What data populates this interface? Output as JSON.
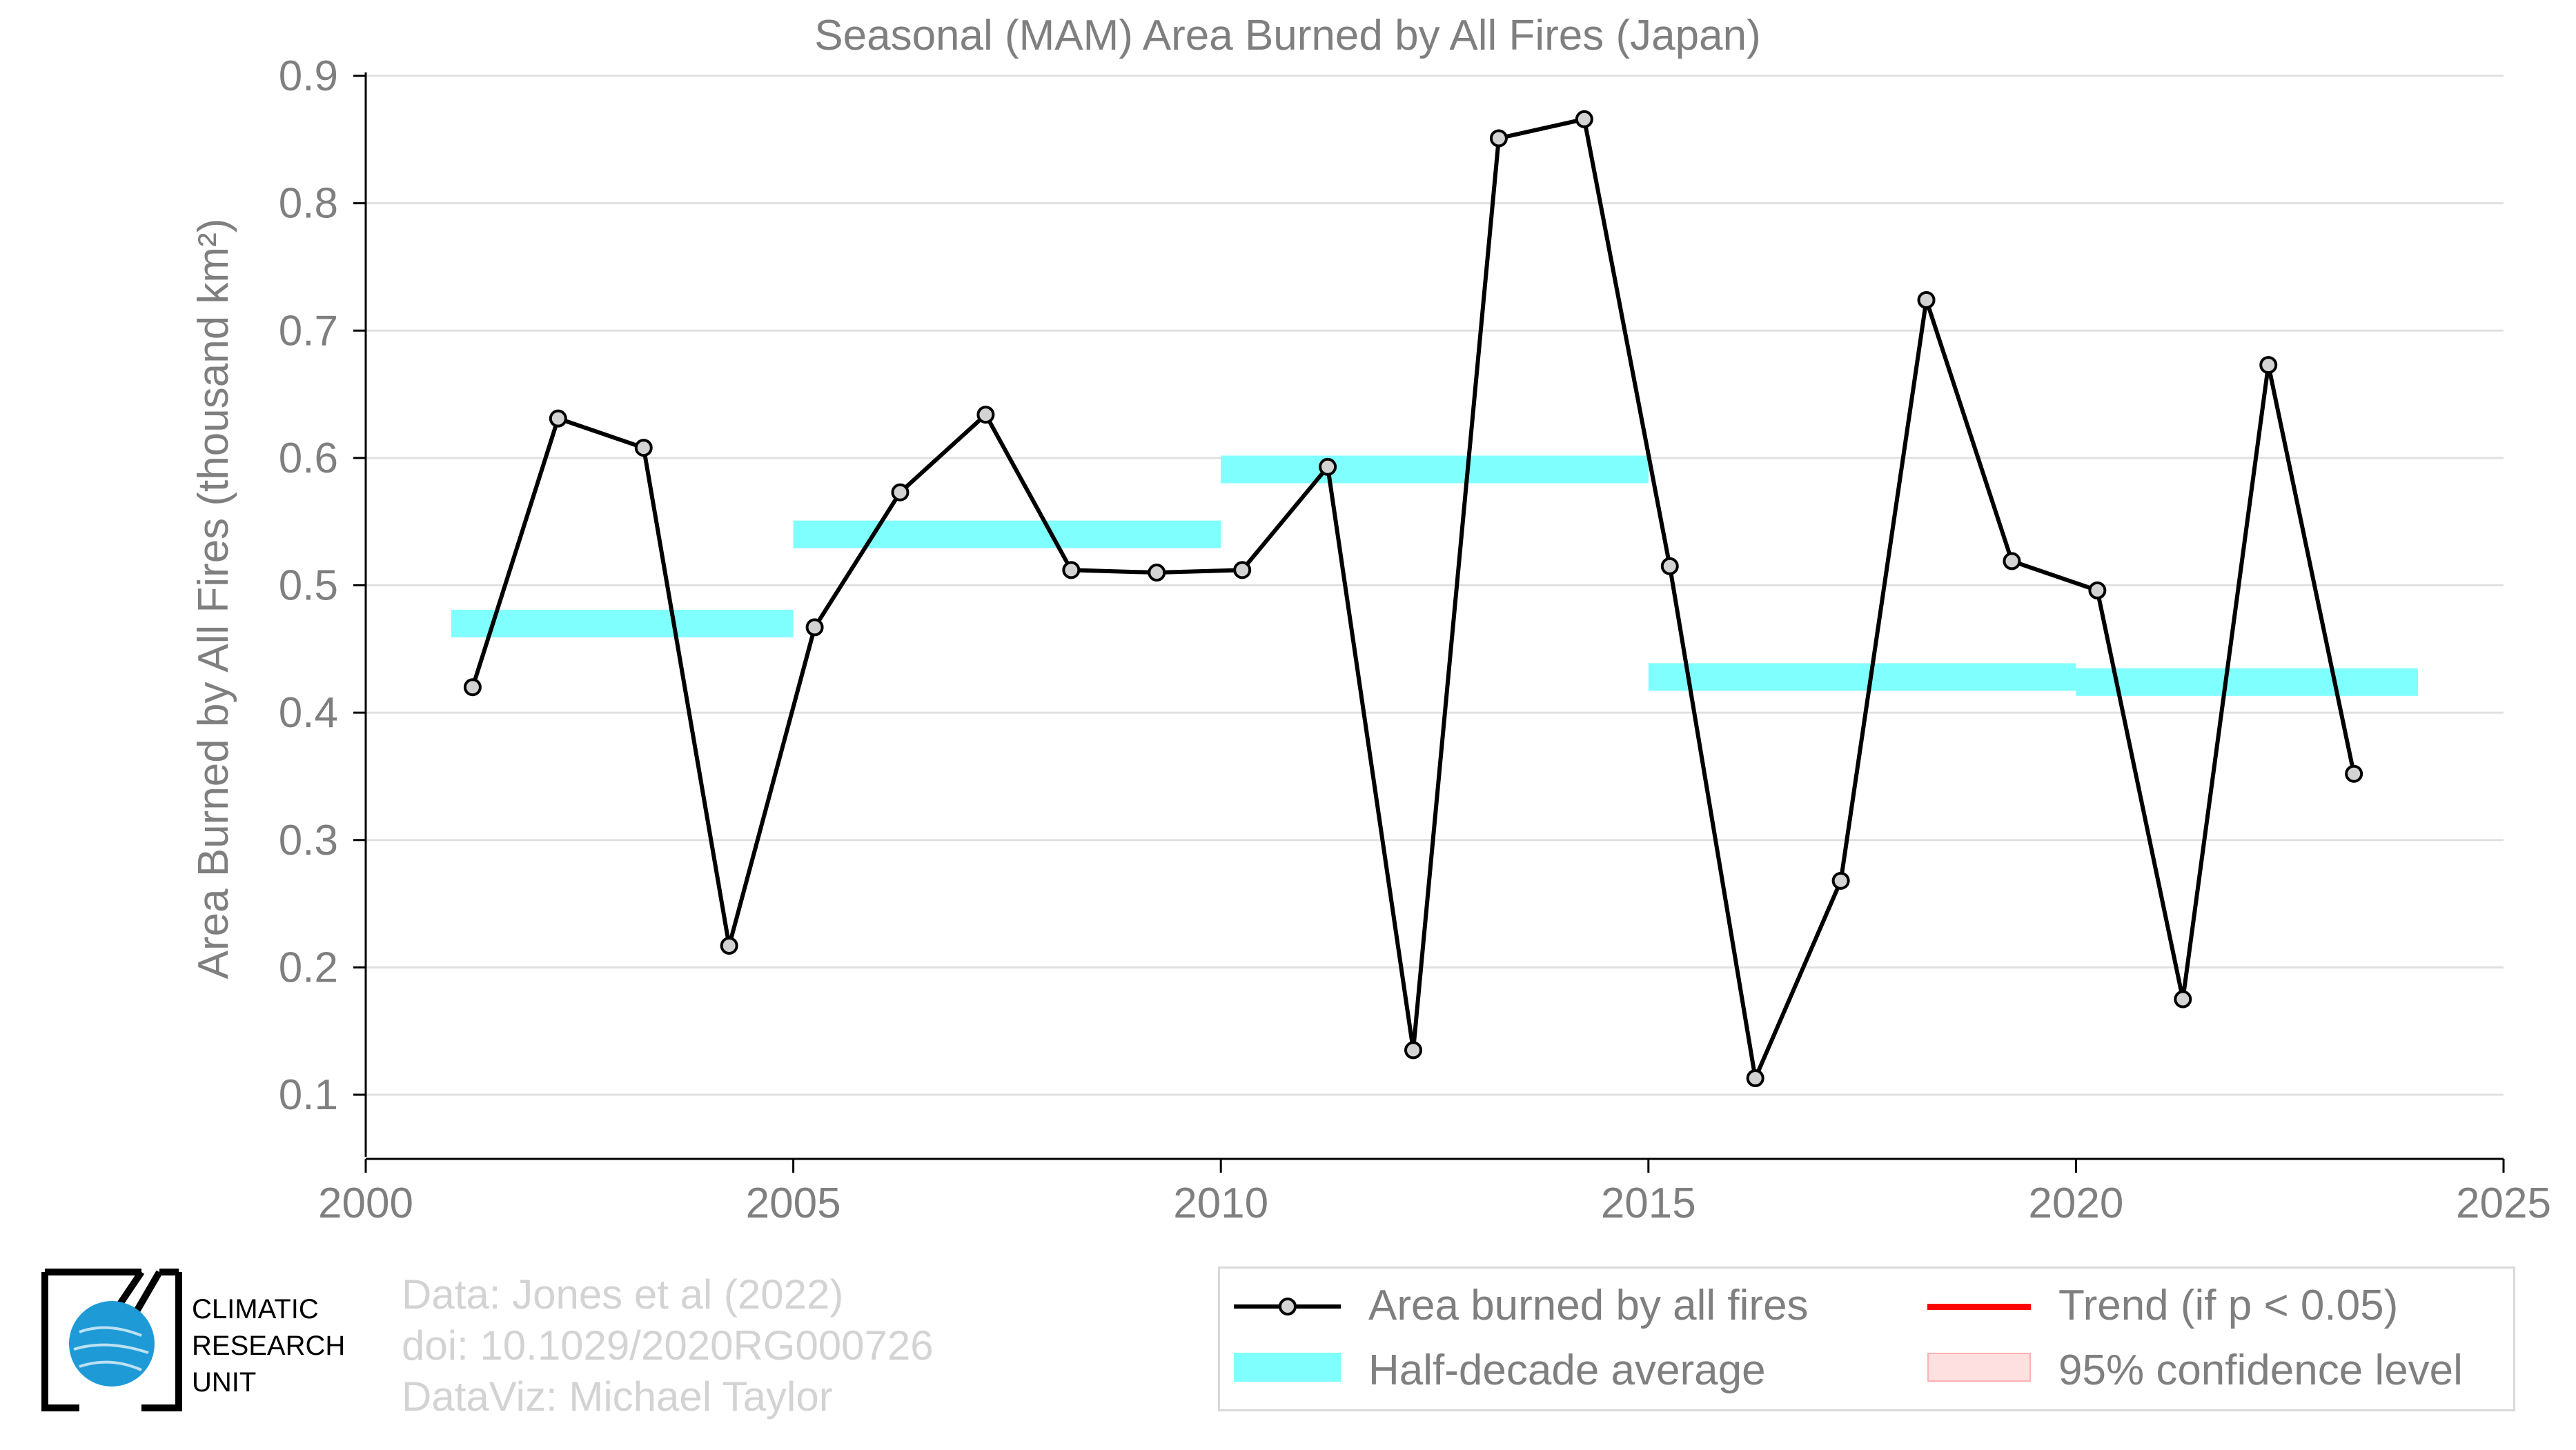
{
  "chart_data": {
    "type": "line",
    "title": "Seasonal (MAM) Area Burned by All Fires (Japan)",
    "xlabel": "",
    "ylabel": "Area Burned by All Fires (thousand km²)",
    "xlim": [
      2000,
      2025
    ],
    "ylim": [
      0.05,
      0.9
    ],
    "x_ticks": [
      "2000",
      "2005",
      "2010",
      "2015",
      "2020",
      "2025"
    ],
    "y_ticks": [
      "0.1",
      "0.2",
      "0.3",
      "0.4",
      "0.5",
      "0.6",
      "0.7",
      "0.8",
      "0.9"
    ],
    "grid": true,
    "legend_position": "bottom-right",
    "series": [
      {
        "name": "Area burned by all fires",
        "color": "#000000",
        "marker_fill": "#d3d3d3",
        "x": [
          2001.25,
          2002.25,
          2003.25,
          2004.25,
          2005.25,
          2006.25,
          2007.25,
          2008.25,
          2009.25,
          2010.25,
          2011.25,
          2012.25,
          2013.25,
          2014.25,
          2015.25,
          2016.25,
          2017.25,
          2018.25,
          2019.25,
          2020.25,
          2021.25,
          2022.25,
          2023.25
        ],
        "values": [
          0.42,
          0.631,
          0.608,
          0.217,
          0.467,
          0.573,
          0.634,
          0.512,
          0.51,
          0.512,
          0.593,
          0.135,
          0.851,
          0.866,
          0.515,
          0.113,
          0.268,
          0.724,
          0.519,
          0.496,
          0.175,
          0.673,
          0.352
        ]
      }
    ],
    "half_decade_averages": {
      "name": "Half-decade average",
      "color": "#80ffff",
      "segments": [
        {
          "x0": 2001,
          "x1": 2005,
          "value": 0.47
        },
        {
          "x0": 2005,
          "x1": 2010,
          "value": 0.54
        },
        {
          "x0": 2010,
          "x1": 2015,
          "value": 0.591
        },
        {
          "x0": 2015,
          "x1": 2020,
          "value": 0.428
        },
        {
          "x0": 2020,
          "x1": 2024,
          "value": 0.424
        }
      ]
    }
  },
  "legend": {
    "line_label": "Area burned by all fires",
    "avg_label": "Half-decade average",
    "trend_label": "Trend (if p < 0.05)",
    "ci_label": "95% confidence level",
    "trend_color": "#ff0000",
    "ci_color": "#ffe0e0"
  },
  "credits": {
    "line1": "Data: Jones et al (2022)",
    "line2": "doi: 10.1029/2020RG000726",
    "line3": "DataViz: Michael Taylor"
  },
  "logo": {
    "line1": "CLIMATIC",
    "line2": "RESEARCH",
    "line3": "UNIT"
  }
}
